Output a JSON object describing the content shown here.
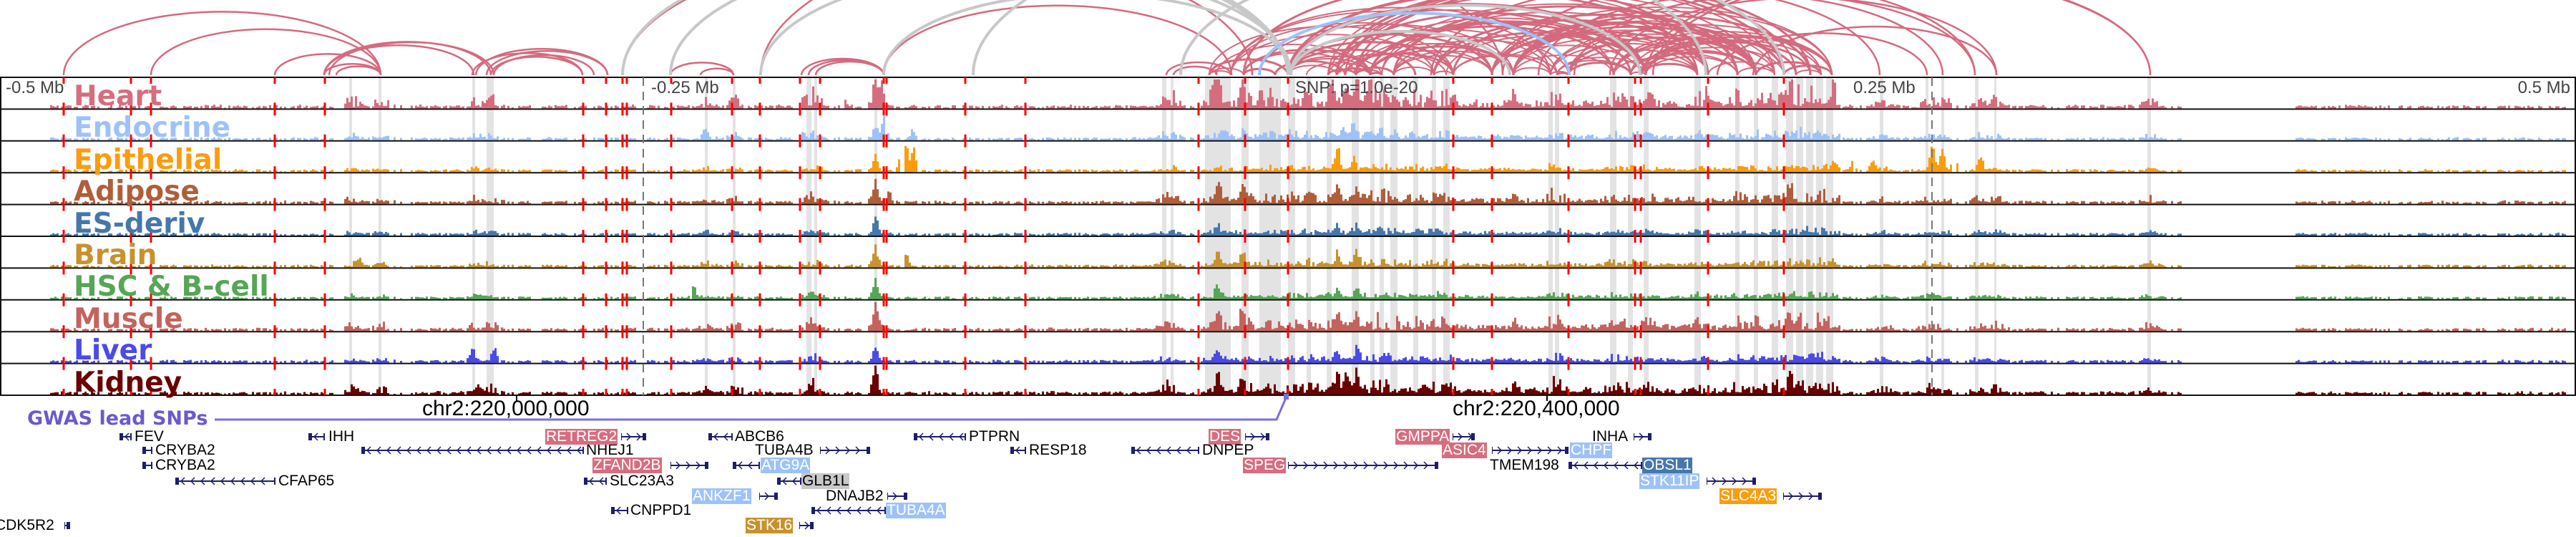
{
  "axis": {
    "left": "-0.5 Mb",
    "left_mid": "-0.25 Mb",
    "center": "SNP: p=1.0e-20",
    "right_mid": "0.25 Mb",
    "right": "0.5 Mb"
  },
  "tracks": [
    {
      "name": "Heart",
      "color": "#d66d7e"
    },
    {
      "name": "Endocrine",
      "color": "#9ec2f8"
    },
    {
      "name": "Epithelial",
      "color": "#f99d0f"
    },
    {
      "name": "Adipose",
      "color": "#b05e3a"
    },
    {
      "name": "ES-deriv",
      "color": "#4677ab"
    },
    {
      "name": "Brain",
      "color": "#c7922e"
    },
    {
      "name": "HSC & B-cell",
      "color": "#55a656"
    },
    {
      "name": "Muscle",
      "color": "#c4635e"
    },
    {
      "name": "Liver",
      "color": "#4a4ae8"
    },
    {
      "name": "Kidney",
      "color": "#6b0000"
    }
  ],
  "coordinates": [
    "chr2:220,000,000",
    "chr2:220,400,000"
  ],
  "gwas": {
    "label": "GWAS lead SNPs",
    "color": "#6a5acd"
  },
  "colors": {
    "arc_pink": "#d46a7e",
    "arc_gray": "#c8c8c8",
    "arc_blue": "#9ec2f8",
    "peak_line": "#ff0000",
    "highlight_bar": "#e3e3e3",
    "gene_glyph": "#1d1d6e"
  },
  "genes": [
    {
      "name": "FEV",
      "strand": "-"
    },
    {
      "name": "IHH",
      "strand": "-"
    },
    {
      "name": "CRYBA2",
      "strand": "-"
    },
    {
      "name": "CRYBA2",
      "strand": "-"
    },
    {
      "name": "CFAP65",
      "strand": "-"
    },
    {
      "name": "CDK5R2",
      "strand": "+"
    },
    {
      "name": "NHEJ1",
      "strand": "-"
    },
    {
      "name": "RETREG2",
      "strand": "+",
      "highlight": "#d66d7e"
    },
    {
      "name": "ABCB6",
      "strand": "-"
    },
    {
      "name": "PTPRN",
      "strand": "-"
    },
    {
      "name": "DES",
      "strand": "+",
      "highlight": "#d66d7e"
    },
    {
      "name": "TUBA4B",
      "strand": "+"
    },
    {
      "name": "RESP18",
      "strand": "-"
    },
    {
      "name": "DNPEP",
      "strand": "-"
    },
    {
      "name": "ZFAND2B",
      "strand": "+",
      "highlight": "#d66d7e"
    },
    {
      "name": "ATG9A",
      "strand": "-",
      "highlight": "#9ec2f8"
    },
    {
      "name": "SPEG",
      "strand": "+",
      "highlight": "#d66d7e"
    },
    {
      "name": "SLC23A3",
      "strand": "-"
    },
    {
      "name": "GLB1L",
      "strand": "-",
      "highlight": "#c8c8c8"
    },
    {
      "name": "ANKZF1",
      "strand": "+",
      "highlight": "#9ec2f8"
    },
    {
      "name": "DNAJB2",
      "strand": "+"
    },
    {
      "name": "CNPPD1",
      "strand": "-"
    },
    {
      "name": "TUBA4A",
      "strand": "-",
      "highlight": "#9ec2f8"
    },
    {
      "name": "STK16",
      "strand": "+",
      "highlight": "#c7922e"
    },
    {
      "name": "GMPPA",
      "strand": "+",
      "highlight": "#d66d7e"
    },
    {
      "name": "INHA",
      "strand": "+"
    },
    {
      "name": "ASIC4",
      "strand": "+",
      "highlight": "#d66d7e"
    },
    {
      "name": "CHPF",
      "strand": "+",
      "highlight": "#9ec2f8"
    },
    {
      "name": "TMEM198",
      "strand": "-"
    },
    {
      "name": "OBSL1",
      "strand": "-",
      "highlight": "#4677ab"
    },
    {
      "name": "STK11IP",
      "strand": "+",
      "highlight": "#9ec2f8"
    },
    {
      "name": "SLC4A3",
      "strand": "+",
      "highlight": "#f99d0f"
    }
  ]
}
